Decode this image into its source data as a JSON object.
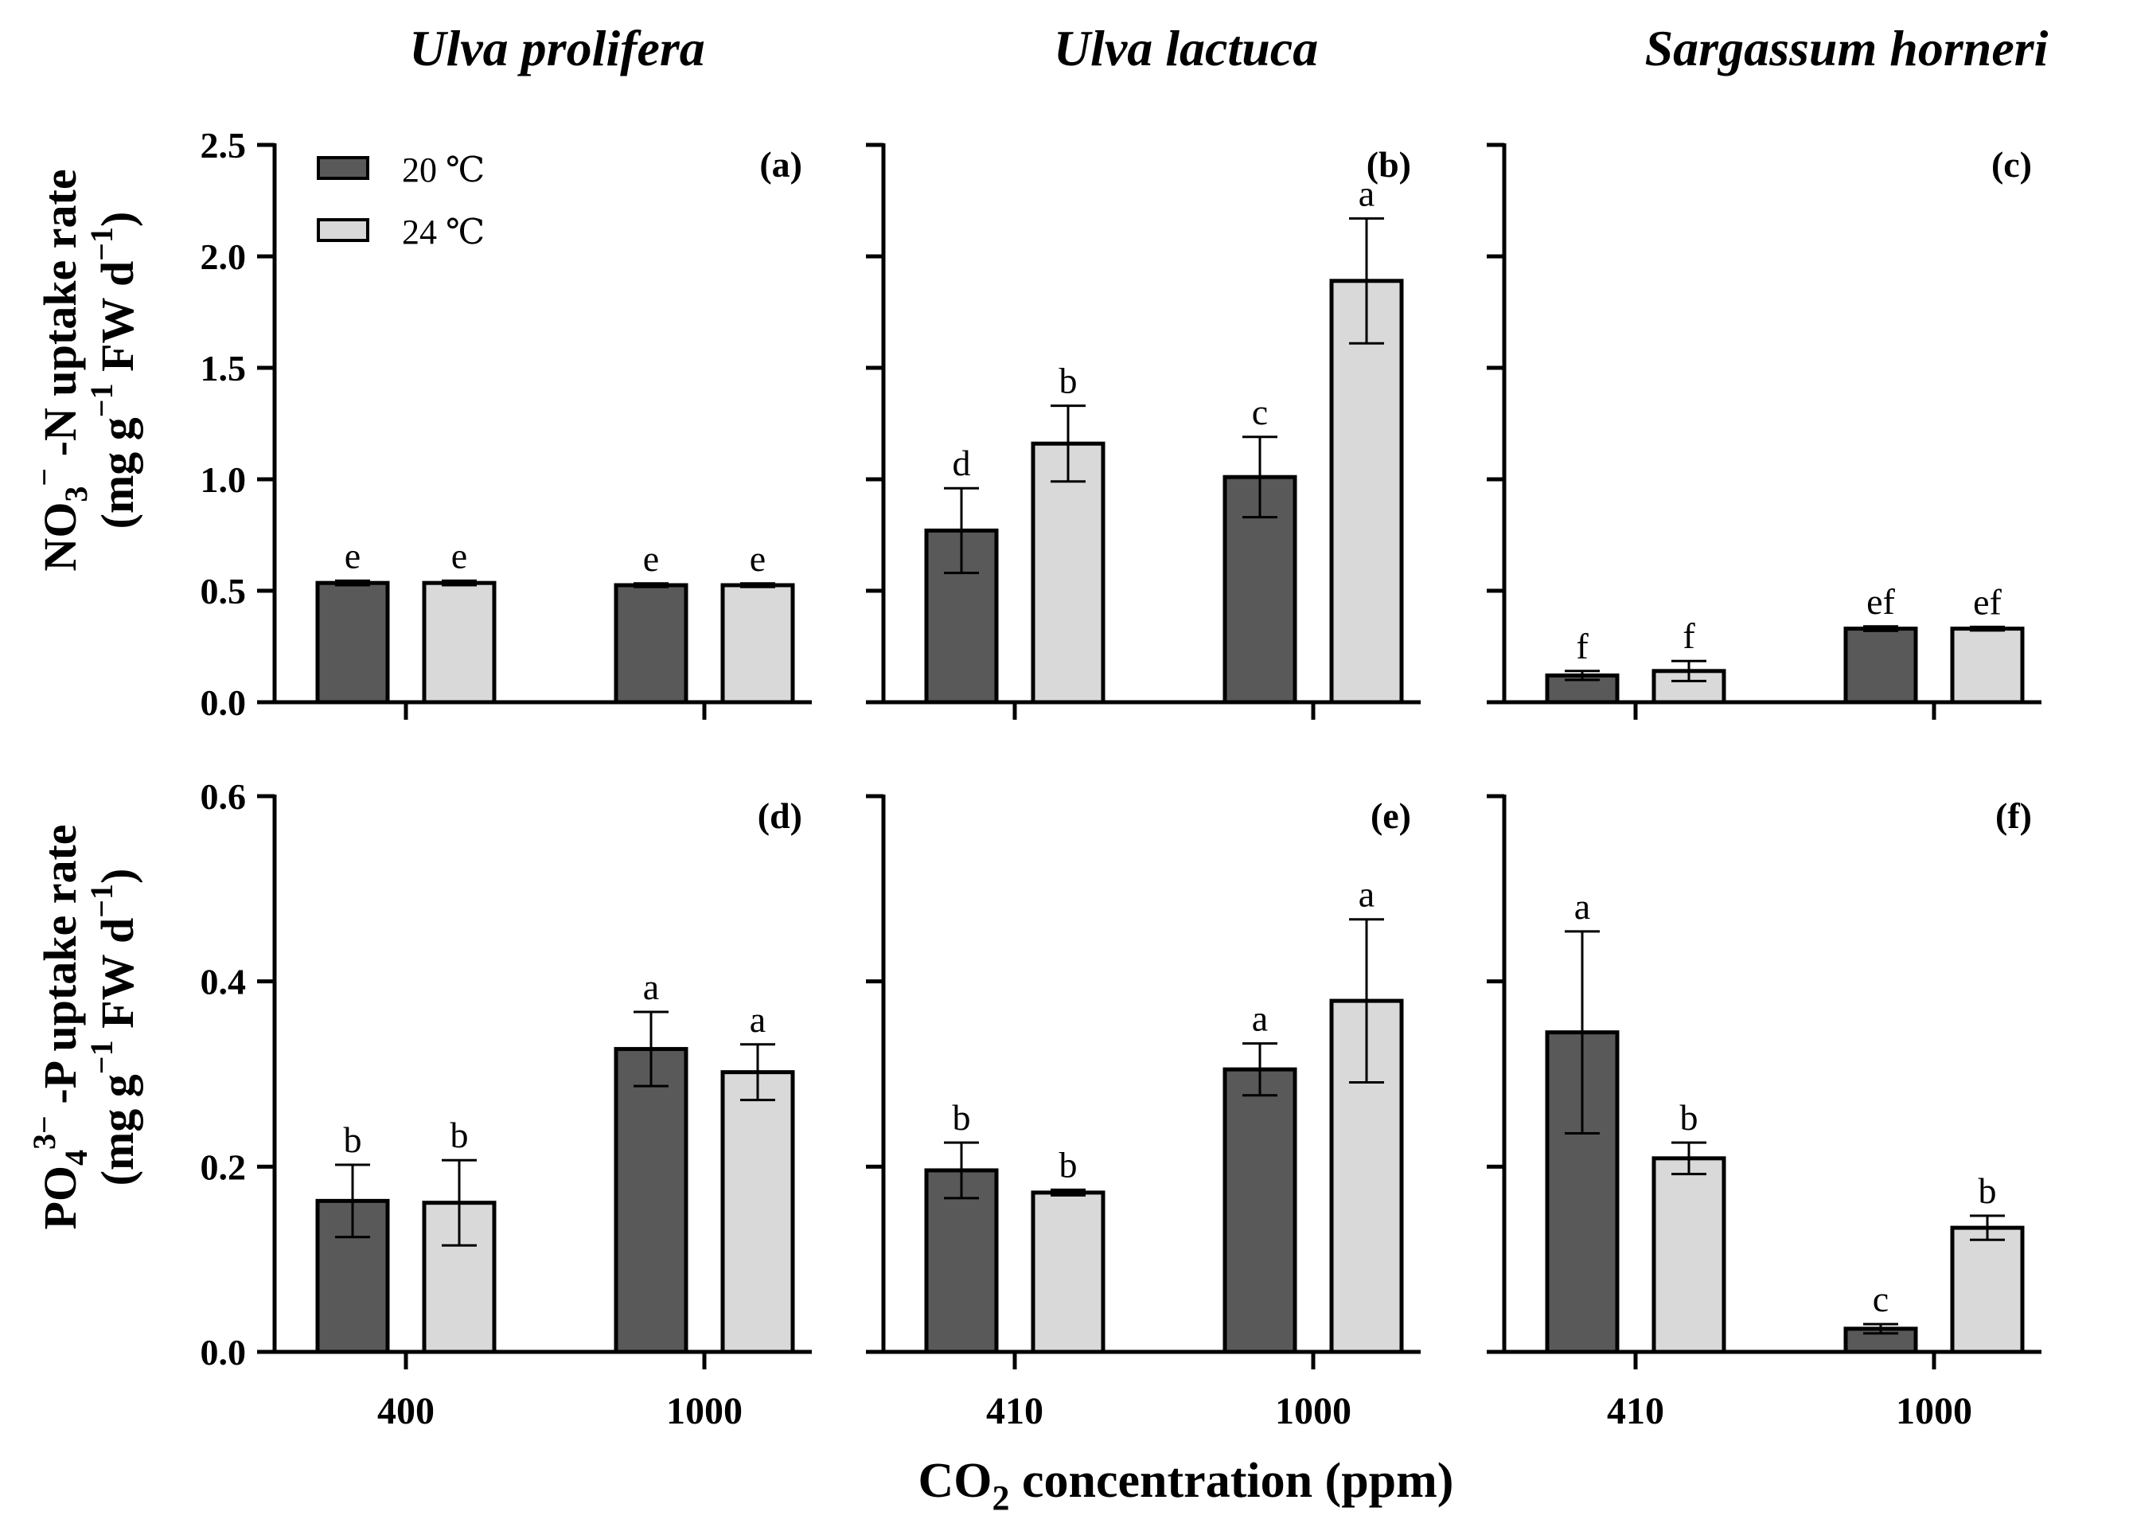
{
  "figure": {
    "column_titles": [
      "Ulva prolifera",
      "Ulva lactuca",
      "Sargassum horneri"
    ],
    "row_ylabels": [
      {
        "line1": [
          "NO",
          "3",
          "−",
          " -N uptake rate"
        ],
        "line2": [
          "(mg g",
          "−1",
          " FW d",
          "−1",
          ")"
        ]
      },
      {
        "line1": [
          "PO",
          "4",
          "3−",
          " -P uptake rate"
        ],
        "line2": [
          "(mg g",
          "−1",
          " FW d",
          "−1",
          ")"
        ]
      }
    ],
    "xaxis_title": [
      "CO",
      "2",
      " concentration (ppm)"
    ]
  },
  "legend": {
    "entries": [
      {
        "label": "20 ℃",
        "color": "#595959"
      },
      {
        "label": "24 ℃",
        "color": "#d9d9d9"
      }
    ]
  },
  "colors": {
    "t20": "#595959",
    "t24": "#d9d9d9"
  },
  "chart_data": [
    {
      "type": "bar",
      "panel": "(a)",
      "species": "Ulva prolifera",
      "row": "NO3-N uptake rate",
      "categories": [
        "400",
        "1000"
      ],
      "ylim": [
        0,
        2.5
      ],
      "yticks": [
        "0.0",
        "0.5",
        "1.0",
        "1.5",
        "2.0",
        "2.5"
      ],
      "ytick_values": [
        0,
        0.5,
        1.0,
        1.5,
        2.0,
        2.5
      ],
      "series": [
        {
          "name": "20 ℃",
          "values": [
            0.535,
            0.525
          ],
          "errors": [
            0.01,
            0.008
          ],
          "letters": [
            "e",
            "e"
          ]
        },
        {
          "name": "24 ℃",
          "values": [
            0.535,
            0.525
          ],
          "errors": [
            0.01,
            0.008
          ],
          "letters": [
            "e",
            "e"
          ]
        }
      ]
    },
    {
      "type": "bar",
      "panel": "(b)",
      "species": "Ulva lactuca",
      "row": "NO3-N uptake rate",
      "categories": [
        "410",
        "1000"
      ],
      "ylim": [
        0,
        2.5
      ],
      "yticks": [],
      "ytick_values": [
        0,
        0.5,
        1.0,
        1.5,
        2.0,
        2.5
      ],
      "series": [
        {
          "name": "20 ℃",
          "values": [
            0.77,
            1.01
          ],
          "errors": [
            0.19,
            0.18
          ],
          "letters": [
            "d",
            "c"
          ]
        },
        {
          "name": "24 ℃",
          "values": [
            1.16,
            1.89
          ],
          "errors": [
            0.17,
            0.28
          ],
          "letters": [
            "b",
            "a"
          ]
        }
      ]
    },
    {
      "type": "bar",
      "panel": "(c)",
      "species": "Sargassum horneri",
      "row": "NO3-N uptake rate",
      "categories": [
        "410",
        "1000"
      ],
      "ylim": [
        0,
        2.5
      ],
      "yticks": [],
      "ytick_values": [
        0,
        0.5,
        1.0,
        1.5,
        2.0,
        2.5
      ],
      "series": [
        {
          "name": "20 ℃",
          "values": [
            0.12,
            0.33
          ],
          "errors": [
            0.02,
            0.01
          ],
          "letters": [
            "f",
            "ef"
          ]
        },
        {
          "name": "24 ℃",
          "values": [
            0.14,
            0.33
          ],
          "errors": [
            0.045,
            0.008
          ],
          "letters": [
            "f",
            "ef"
          ]
        }
      ]
    },
    {
      "type": "bar",
      "panel": "(d)",
      "species": "Ulva prolifera",
      "row": "PO4-P uptake rate",
      "categories": [
        "400",
        "1000"
      ],
      "ylim": [
        0,
        0.6
      ],
      "yticks": [
        "0.0",
        "0.2",
        "0.4",
        "0.6"
      ],
      "ytick_values": [
        0,
        0.2,
        0.4,
        0.6
      ],
      "series": [
        {
          "name": "20 ℃",
          "values": [
            0.163,
            0.327
          ],
          "errors": [
            0.039,
            0.04
          ],
          "letters": [
            "b",
            "a"
          ]
        },
        {
          "name": "24 ℃",
          "values": [
            0.161,
            0.302
          ],
          "errors": [
            0.046,
            0.03
          ],
          "letters": [
            "b",
            "a"
          ]
        }
      ]
    },
    {
      "type": "bar",
      "panel": "(e)",
      "species": "Ulva lactuca",
      "row": "PO4-P uptake rate",
      "categories": [
        "410",
        "1000"
      ],
      "ylim": [
        0,
        0.6
      ],
      "yticks": [],
      "ytick_values": [
        0,
        0.2,
        0.4,
        0.6
      ],
      "series": [
        {
          "name": "20 ℃",
          "values": [
            0.196,
            0.305
          ],
          "errors": [
            0.03,
            0.028
          ],
          "letters": [
            "b",
            "a"
          ]
        },
        {
          "name": "24 ℃",
          "values": [
            0.172,
            0.379
          ],
          "errors": [
            0.003,
            0.088
          ],
          "letters": [
            "b",
            "a"
          ]
        }
      ]
    },
    {
      "type": "bar",
      "panel": "(f)",
      "species": "Sargassum horneri",
      "row": "PO4-P uptake rate",
      "categories": [
        "410",
        "1000"
      ],
      "ylim": [
        0,
        0.6
      ],
      "yticks": [],
      "ytick_values": [
        0,
        0.2,
        0.4,
        0.6
      ],
      "series": [
        {
          "name": "20 ℃",
          "values": [
            0.345,
            0.025
          ],
          "errors": [
            0.109,
            0.005
          ],
          "letters": [
            "a",
            "c"
          ]
        },
        {
          "name": "24 ℃",
          "values": [
            0.209,
            0.134
          ],
          "errors": [
            0.017,
            0.013
          ],
          "letters": [
            "b",
            "b"
          ]
        }
      ]
    }
  ]
}
